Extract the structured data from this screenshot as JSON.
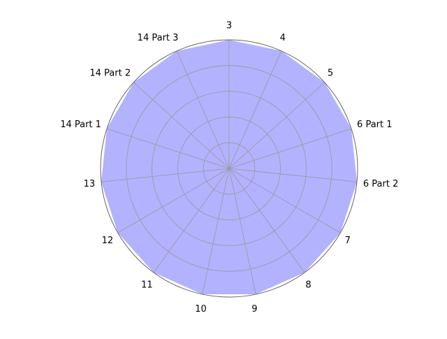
{
  "chart_data": {
    "type": "radar",
    "title": "",
    "categories": [
      "3",
      "4",
      "5",
      "6 Part 1",
      "6 Part 2",
      "7",
      "8",
      "9",
      "10",
      "11",
      "12",
      "13",
      "14 Part 1",
      "14 Part 2",
      "14 Part 3"
    ],
    "series": [
      {
        "values": [
          1,
          1,
          1,
          1,
          1,
          1,
          1,
          1,
          1,
          1,
          1,
          1,
          1,
          1,
          1
        ]
      }
    ],
    "rlim": [
      0,
      1
    ],
    "r_gridlines": [
      0.2,
      0.4,
      0.6,
      0.8,
      1.0
    ],
    "grid": true,
    "direction": "clockwise",
    "start_angle": "top",
    "colors": {
      "fill": "#b2b2ff",
      "grid": "#999999",
      "outer_ring": "#666666",
      "label": "#000000"
    }
  }
}
